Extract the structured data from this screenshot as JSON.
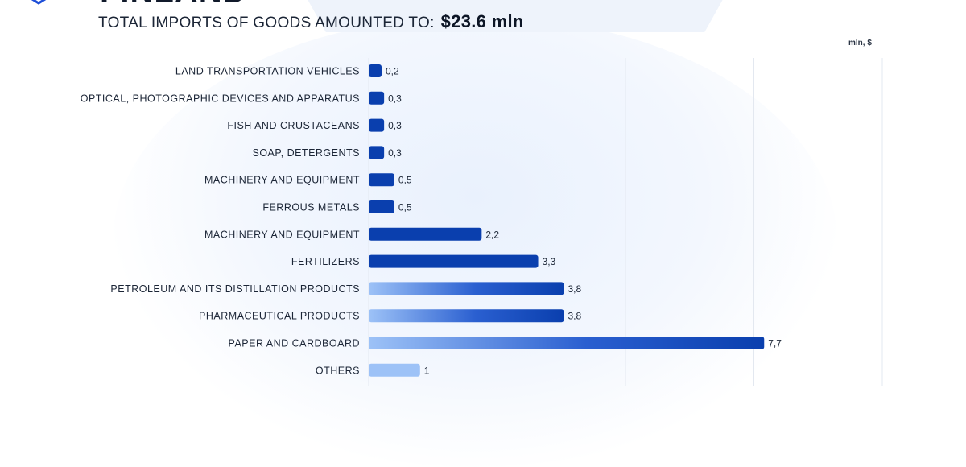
{
  "header": {
    "country": "FINLAND",
    "subtitle": "TOTAL IMPORTS OF GOODS AMOUNTED TO:",
    "total": "$23.6 mln",
    "unit": "mln, $"
  },
  "logo": {
    "icon": "shield-logo-icon",
    "color": "#1d4ed8"
  },
  "chart_data": {
    "type": "bar",
    "orientation": "horizontal",
    "title": "TOTAL IMPORTS OF GOODS AMOUNTED TO: $23.6 mln",
    "ylabel": "mln, $",
    "xlim": [
      0,
      10
    ],
    "grid": true,
    "categories": [
      "LAND TRANSPORTATION VEHICLES",
      "OPTICAL, PHOTOGRAPHIC DEVICES AND APPARATUS",
      "FISH AND CRUSTACEANS",
      "SOAP, DETERGENTS",
      "MACHINERY AND EQUIPMENT",
      "FERROUS METALS",
      "MACHINERY AND EQUIPMENT",
      "FERTILIZERS",
      "PETROLEUM AND ITS DISTILLATION PRODUCTS",
      "PHARMACEUTICAL PRODUCTS",
      "PAPER AND CARDBOARD",
      "OTHERS"
    ],
    "values": [
      0.2,
      0.3,
      0.3,
      0.3,
      0.5,
      0.5,
      2.2,
      3.3,
      3.8,
      3.8,
      7.7,
      1
    ],
    "value_labels": [
      "0,2",
      "0,3",
      "0,3",
      "0,3",
      "0,5",
      "0,5",
      "2,2",
      "3,3",
      "3,8",
      "3,8",
      "7,7",
      "1"
    ],
    "bar_styles": [
      "solid",
      "solid",
      "solid",
      "solid",
      "solid",
      "solid",
      "solid",
      "solid",
      "light-to-dark",
      "light-to-dark",
      "light-to-dark",
      "light"
    ],
    "colors": {
      "dark": "#0a3fae",
      "light": "#9dc2f7",
      "grid": "#e3e8f0"
    }
  }
}
